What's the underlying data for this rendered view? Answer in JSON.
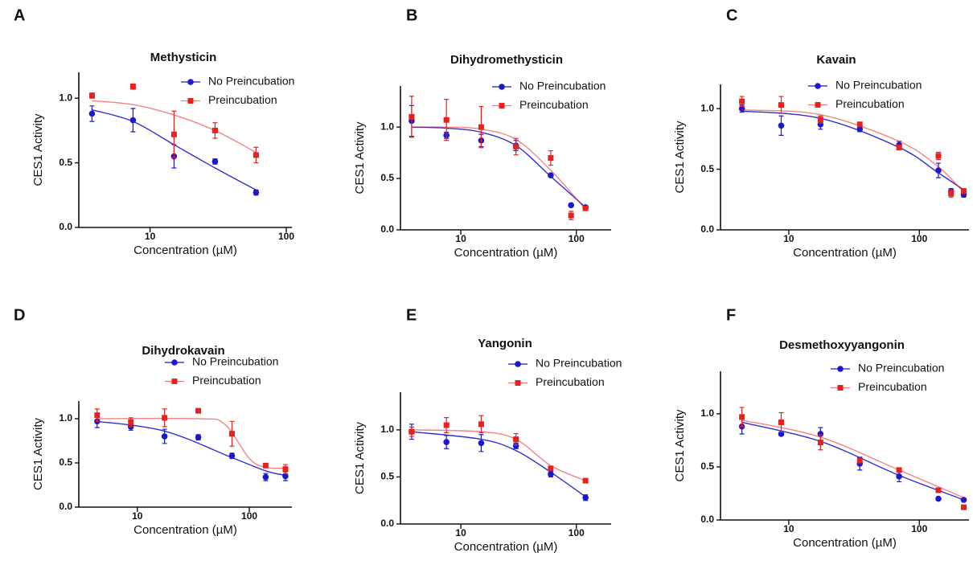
{
  "chart_data": [
    {
      "type": "scatter",
      "panel": "A",
      "title": "Methysticin",
      "x_label": "Concentration (µM)",
      "y_label": "CES1 Activity",
      "log_x": true,
      "xlim": [
        3,
        110
      ],
      "xticks": [
        10,
        100
      ],
      "ylim": [
        0,
        1.2
      ],
      "yticks": [
        {
          "value": 0,
          "label": "0.0"
        },
        0.5,
        {
          "value": 1,
          "label": "1.0"
        }
      ],
      "x": [
        3.75,
        7.5,
        15,
        30,
        60
      ],
      "series": [
        {
          "name": "No Preincubation",
          "color": "#1a1acc",
          "marker": "circle",
          "values": [
            0.88,
            0.83,
            0.55,
            0.51,
            0.27
          ],
          "errors": [
            0.06,
            0.09,
            0.09,
            0.02,
            0.02
          ],
          "fit": {
            "x": [
              3.75,
              7.5,
              15,
              30,
              60
            ],
            "values": [
              0.91,
              0.82,
              0.64,
              0.46,
              0.29
            ]
          }
        },
        {
          "name": "Preincubation",
          "color": "#e8201e",
          "marker": "square",
          "values": [
            1.02,
            1.09,
            0.72,
            0.75,
            0.56
          ],
          "errors": [
            0.02,
            0.02,
            0.18,
            0.06,
            0.06
          ],
          "fit": {
            "x": [
              3.75,
              7.5,
              15,
              30,
              60
            ],
            "values": [
              0.98,
              0.95,
              0.87,
              0.75,
              0.58
            ]
          }
        }
      ]
    },
    {
      "type": "scatter",
      "panel": "B",
      "title": "Dihydromethysticin",
      "x_label": "Concentration (µM)",
      "y_label": "CES1 Activity",
      "log_x": true,
      "xlim": [
        3,
        200
      ],
      "xticks": [
        10,
        100
      ],
      "ylim": [
        0,
        1.4
      ],
      "yticks": [
        {
          "value": 0,
          "label": "0.0"
        },
        0.5,
        {
          "value": 1,
          "label": "1.0"
        }
      ],
      "x": [
        3.75,
        7.5,
        15,
        30,
        60,
        90,
        120
      ],
      "series": [
        {
          "name": "No Preincubation",
          "color": "#1a1acc",
          "marker": "circle",
          "values": [
            1.06,
            0.92,
            0.87,
            0.82,
            0.53,
            0.24,
            0.22
          ],
          "errors": [
            0.15,
            0.03,
            0.06,
            0.05,
            0.01,
            0.01,
            0.01
          ],
          "fit": {
            "x": [
              3.75,
              7.5,
              15,
              30,
              60,
              120
            ],
            "values": [
              1.0,
              0.99,
              0.95,
              0.82,
              0.52,
              0.22
            ]
          }
        },
        {
          "name": "Preincubation",
          "color": "#e8201e",
          "marker": "square",
          "values": [
            1.1,
            1.07,
            1.0,
            0.81,
            0.7,
            0.14,
            0.21
          ],
          "errors": [
            0.2,
            0.2,
            0.2,
            0.08,
            0.07,
            0.04,
            0.02
          ],
          "fit": {
            "x": [
              3.75,
              7.5,
              15,
              30,
              60,
              120
            ],
            "values": [
              1.0,
              1.0,
              0.98,
              0.88,
              0.58,
              0.2
            ]
          }
        }
      ]
    },
    {
      "type": "scatter",
      "panel": "C",
      "title": "Kavain",
      "x_label": "Concentration (µM)",
      "y_label": "CES1 Activity",
      "log_x": true,
      "xlim": [
        3,
        240
      ],
      "xticks": [
        10,
        100
      ],
      "ylim": [
        0,
        1.2
      ],
      "yticks": [
        {
          "value": 0,
          "label": "0.0"
        },
        0.5,
        {
          "value": 1,
          "label": "1.0"
        }
      ],
      "x": [
        4.375,
        8.75,
        17.5,
        35,
        70,
        140,
        175,
        218.75
      ],
      "series": [
        {
          "name": "No Preincubation",
          "color": "#1a1acc",
          "marker": "circle",
          "values": [
            1.0,
            0.86,
            0.87,
            0.83,
            0.7,
            0.49,
            0.32,
            0.29
          ],
          "errors": [
            0.03,
            0.08,
            0.04,
            0.02,
            0.03,
            0.06,
            0.02,
            0.02
          ],
          "fit": {
            "x": [
              4.375,
              17.5,
              70,
              140,
              218.75
            ],
            "values": [
              0.98,
              0.92,
              0.68,
              0.47,
              0.33
            ]
          }
        },
        {
          "name": "Preincubation",
          "color": "#e8201e",
          "marker": "square",
          "values": [
            1.06,
            1.03,
            0.91,
            0.87,
            0.68,
            0.61,
            0.3,
            0.32
          ],
          "errors": [
            0.04,
            0.07,
            0.03,
            0.01,
            0.02,
            0.03,
            0.03,
            0.02
          ],
          "fit": {
            "x": [
              4.375,
              17.5,
              70,
              140,
              218.75
            ],
            "values": [
              0.99,
              0.95,
              0.73,
              0.52,
              0.31
            ]
          }
        }
      ]
    },
    {
      "type": "scatter",
      "panel": "D",
      "title": "Dihydrokavain",
      "x_label": "Concentration (µM)",
      "y_label": "CES1 Activity",
      "log_x": true,
      "xlim": [
        3,
        240
      ],
      "xticks": [
        10,
        100
      ],
      "ylim": [
        0,
        1.2
      ],
      "yticks": [
        {
          "value": 0,
          "label": "0.0"
        },
        0.5,
        {
          "value": 1,
          "label": "1.0"
        }
      ],
      "x": [
        4.375,
        8.75,
        17.5,
        35,
        70,
        140,
        210
      ],
      "series": [
        {
          "name": "No Preincubation",
          "color": "#1a1acc",
          "marker": "circle",
          "values": [
            0.97,
            0.91,
            0.8,
            0.79,
            0.58,
            0.34,
            0.35
          ],
          "errors": [
            0.07,
            0.04,
            0.08,
            0.03,
            0.03,
            0.04,
            0.05
          ],
          "fit": {
            "x": [
              4.375,
              17.5,
              70,
              140,
              210
            ],
            "values": [
              0.97,
              0.86,
              0.56,
              0.41,
              0.36
            ]
          }
        },
        {
          "name": "Preincubation",
          "color": "#e8201e",
          "marker": "square",
          "values": [
            1.04,
            0.96,
            1.01,
            1.09,
            0.83,
            0.47,
            0.43
          ],
          "errors": [
            0.07,
            0.05,
            0.1,
            0,
            0.14,
            0.02,
            0.05
          ],
          "fit": {
            "x": [
              4.375,
              35,
              60,
              100,
              140,
              210
            ],
            "values": [
              1.0,
              1.0,
              0.94,
              0.55,
              0.45,
              0.44
            ]
          }
        }
      ]
    },
    {
      "type": "scatter",
      "panel": "E",
      "title": "Yangonin",
      "x_label": "Concentration (µM)",
      "y_label": "CES1 Activity",
      "log_x": true,
      "xlim": [
        3,
        200
      ],
      "xticks": [
        10,
        100
      ],
      "ylim": [
        0,
        1.4
      ],
      "yticks": [
        {
          "value": 0,
          "label": "0.0"
        },
        0.5,
        {
          "value": 1,
          "label": "1.0"
        }
      ],
      "x": [
        3.75,
        7.5,
        15,
        30,
        60,
        120
      ],
      "series": [
        {
          "name": "No Preincubation",
          "color": "#1a1acc",
          "marker": "circle",
          "values": [
            0.98,
            0.87,
            0.86,
            0.83,
            0.53,
            0.28
          ],
          "errors": [
            0.08,
            0.07,
            0.09,
            0.03,
            0.03,
            0.03
          ],
          "fit": {
            "x": [
              3.75,
              15,
              30,
              60,
              120
            ],
            "values": [
              0.98,
              0.9,
              0.78,
              0.55,
              0.29
            ]
          }
        },
        {
          "name": "Preincubation",
          "color": "#e8201e",
          "marker": "square",
          "values": [
            0.98,
            1.05,
            1.06,
            0.9,
            0.59,
            0.46
          ],
          "errors": [
            0.05,
            0.08,
            0.09,
            0.06,
            0.01,
            0.02
          ],
          "fit": {
            "x": [
              3.75,
              15,
              30,
              60,
              120
            ],
            "values": [
              1.0,
              0.98,
              0.9,
              0.62,
              0.46
            ]
          }
        }
      ]
    },
    {
      "type": "scatter",
      "panel": "F",
      "title": "Desmethoxyyangonin",
      "x_label": "Concentration (µM)",
      "y_label": "CES1 Activity",
      "log_x": true,
      "xlim": [
        3,
        240
      ],
      "xticks": [
        10,
        100
      ],
      "ylim": [
        0,
        1.4
      ],
      "yticks": [
        {
          "value": 0,
          "label": "0.0"
        },
        0.5,
        {
          "value": 1,
          "label": "1.0"
        }
      ],
      "x": [
        4.375,
        8.75,
        17.5,
        35,
        70,
        140,
        218.75
      ],
      "series": [
        {
          "name": "No Preincubation",
          "color": "#1a1acc",
          "marker": "circle",
          "values": [
            0.88,
            0.81,
            0.81,
            0.53,
            0.41,
            0.2,
            0.19
          ],
          "errors": [
            0.07,
            0.01,
            0.06,
            0.06,
            0.05,
            0.01,
            0
          ],
          "fit": {
            "x": [
              4.375,
              17.5,
              70,
              218.75
            ],
            "values": [
              0.92,
              0.74,
              0.42,
              0.19
            ]
          }
        },
        {
          "name": "Preincubation",
          "color": "#e8201e",
          "marker": "square",
          "values": [
            0.97,
            0.92,
            0.73,
            0.56,
            0.47,
            0.28,
            0.12
          ],
          "errors": [
            0.09,
            0.09,
            0.07,
            0.02,
            0.02,
            0.02,
            0.01
          ],
          "fit": {
            "x": [
              4.375,
              17.5,
              70,
              218.75
            ],
            "values": [
              0.94,
              0.78,
              0.47,
              0.21
            ]
          }
        }
      ]
    }
  ]
}
